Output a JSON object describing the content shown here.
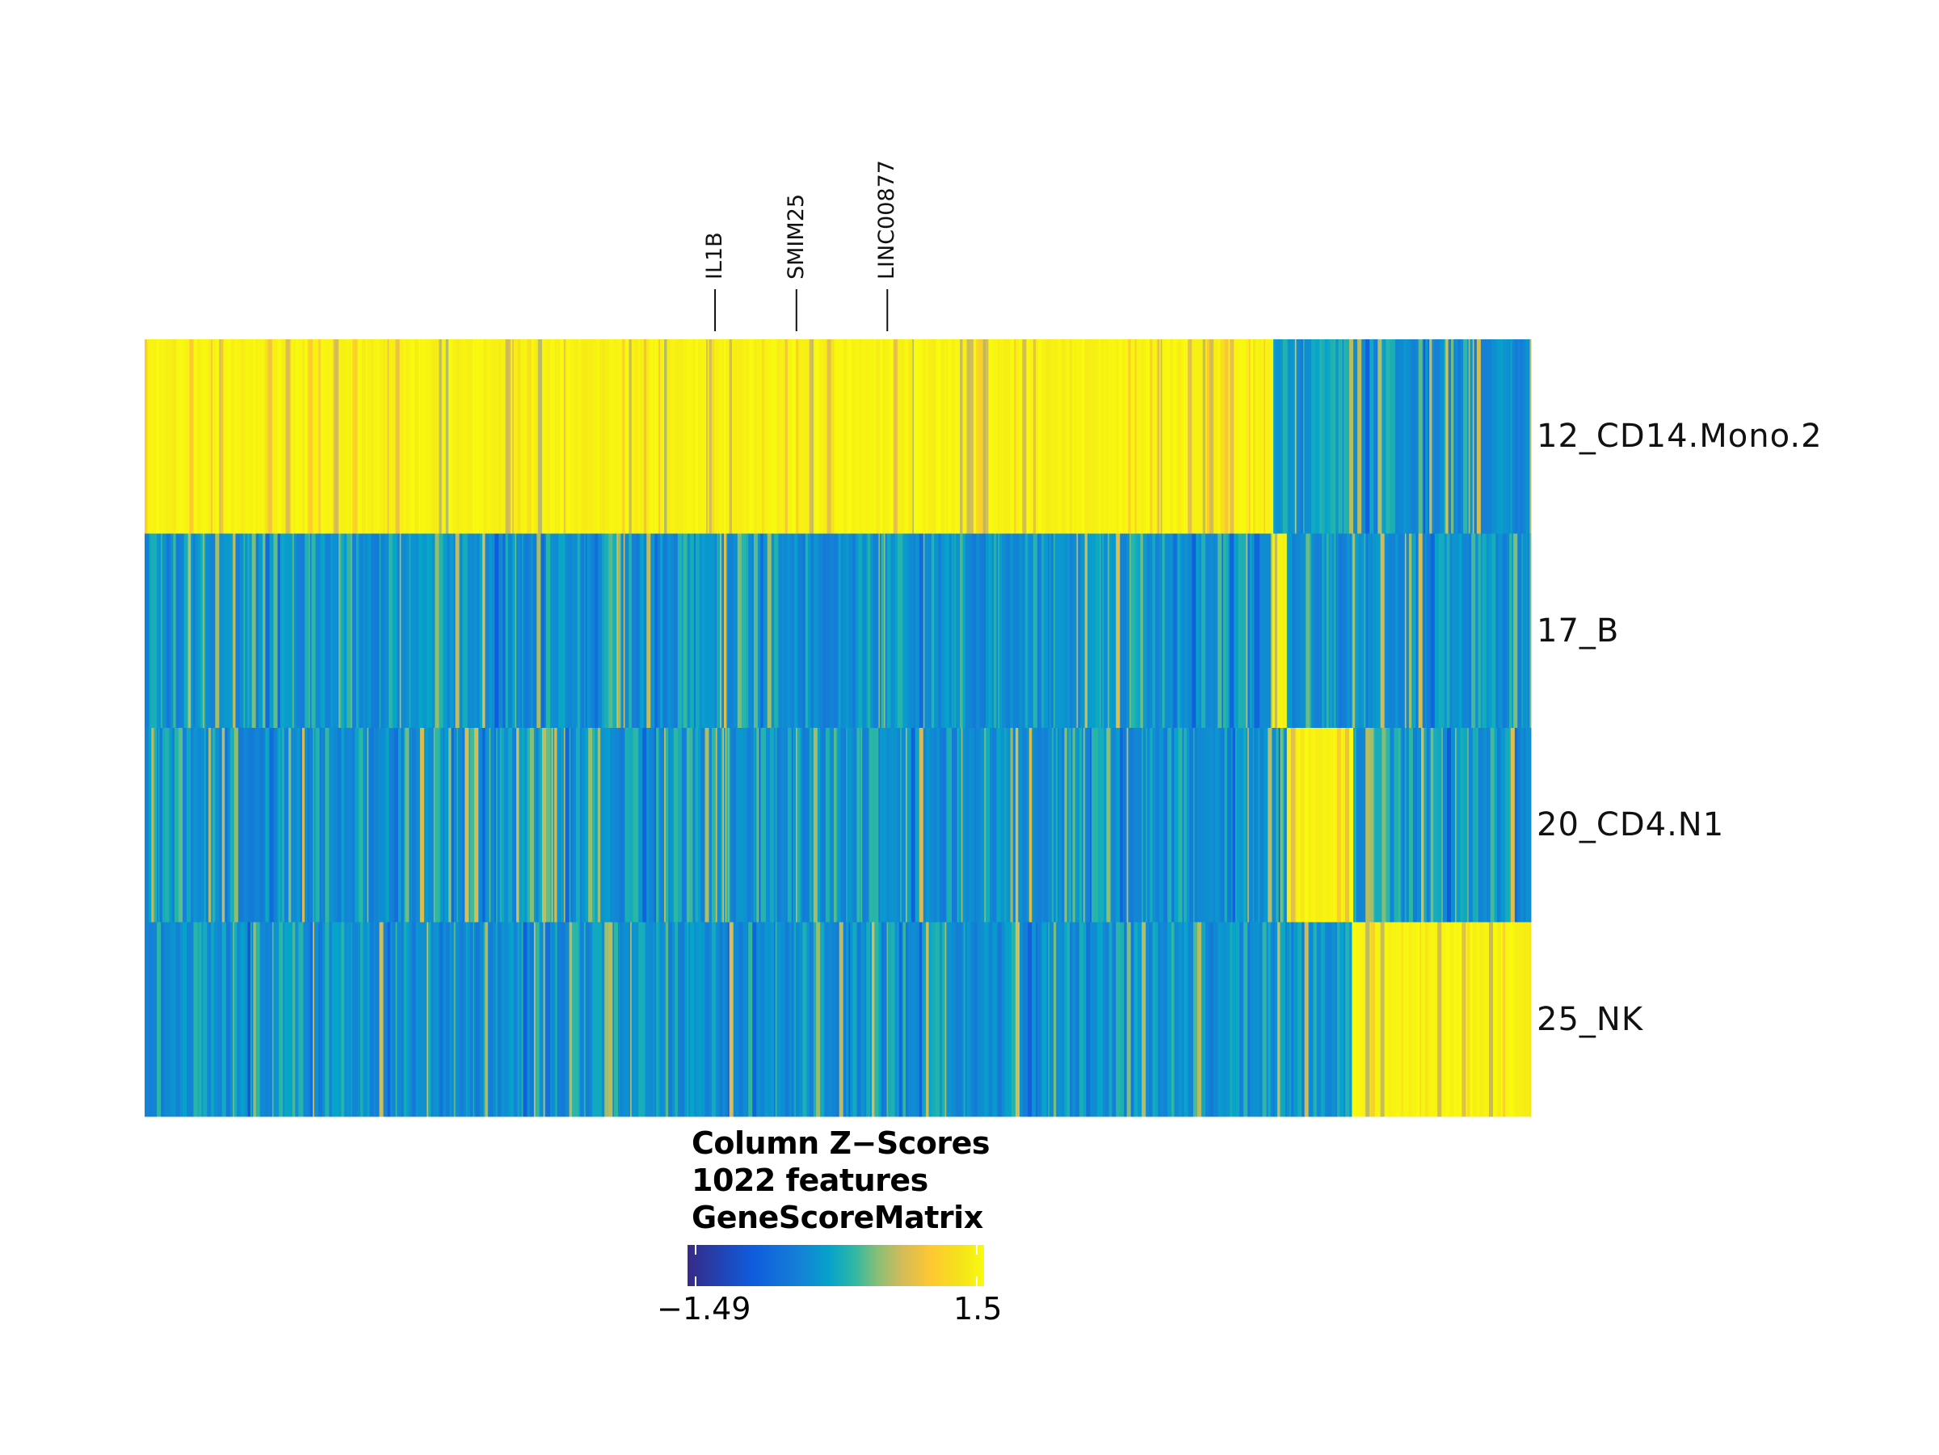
{
  "chart_data": {
    "type": "heatmap",
    "rows": [
      "12_CD14.Mono.2",
      "17_B",
      "20_CD4.N1",
      "25_NK"
    ],
    "n_features": 1022,
    "highlighted_features": [
      {
        "label": "IL1B",
        "column_index": 420
      },
      {
        "label": "SMIM25",
        "column_index": 480
      },
      {
        "label": "LINC00877",
        "column_index": 547
      }
    ],
    "row_blocks": [
      {
        "row": "12_CD14.Mono.2",
        "high_columns": [
          0,
          830
        ]
      },
      {
        "row": "17_B",
        "high_columns": [
          831,
          840
        ]
      },
      {
        "row": "20_CD4.N1",
        "high_columns": [
          841,
          889
        ]
      },
      {
        "row": "25_NK",
        "high_columns": [
          890,
          1021
        ]
      }
    ],
    "value_range": [
      -1.49,
      1.5
    ],
    "colormap": [
      "#352a87",
      "#0f5cdd",
      "#1481d6",
      "#06a4ca",
      "#2eb7a4",
      "#87bf77",
      "#d1bb59",
      "#fec832",
      "#f5e21a",
      "#f9fb0e"
    ],
    "legend": {
      "title_lines": [
        "Column Z−Scores",
        "1022 features",
        "GeneScoreMatrix"
      ],
      "min_label": "−1.49",
      "max_label": "1.5"
    }
  }
}
